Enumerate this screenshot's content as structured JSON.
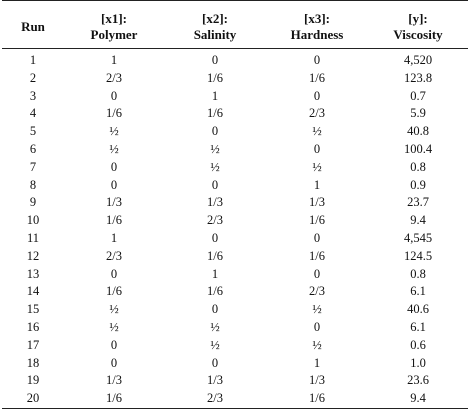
{
  "table": {
    "headers": [
      {
        "symbol": "",
        "label": "Run"
      },
      {
        "symbol": "[x1]:",
        "label": "Polymer"
      },
      {
        "symbol": "[x2]:",
        "label": "Salinity"
      },
      {
        "symbol": "[x3]:",
        "label": "Hardness"
      },
      {
        "symbol": "[y]:",
        "label": "Viscosity"
      }
    ],
    "rows": [
      [
        "1",
        "1",
        "0",
        "0",
        "4,520"
      ],
      [
        "2",
        "2/3",
        "1/6",
        "1/6",
        "123.8"
      ],
      [
        "3",
        "0",
        "1",
        "0",
        "0.7"
      ],
      [
        "4",
        "1/6",
        "1/6",
        "2/3",
        "5.9"
      ],
      [
        "5",
        "½",
        "0",
        "½",
        "40.8"
      ],
      [
        "6",
        "½",
        "½",
        "0",
        "100.4"
      ],
      [
        "7",
        "0",
        "½",
        "½",
        "0.8"
      ],
      [
        "8",
        "0",
        "0",
        "1",
        "0.9"
      ],
      [
        "9",
        "1/3",
        "1/3",
        "1/3",
        "23.7"
      ],
      [
        "10",
        "1/6",
        "2/3",
        "1/6",
        "9.4"
      ],
      [
        "11",
        "1",
        "0",
        "0",
        "4,545"
      ],
      [
        "12",
        "2/3",
        "1/6",
        "1/6",
        "124.5"
      ],
      [
        "13",
        "0",
        "1",
        "0",
        "0.8"
      ],
      [
        "14",
        "1/6",
        "1/6",
        "2/3",
        "6.1"
      ],
      [
        "15",
        "½",
        "0",
        "½",
        "40.6"
      ],
      [
        "16",
        "½",
        "½",
        "0",
        "6.1"
      ],
      [
        "17",
        "0",
        "½",
        "½",
        "0.6"
      ],
      [
        "18",
        "0",
        "0",
        "1",
        "1.0"
      ],
      [
        "19",
        "1/3",
        "1/3",
        "1/3",
        "23.6"
      ],
      [
        "20",
        "1/6",
        "2/3",
        "1/6",
        "9.4"
      ]
    ]
  }
}
